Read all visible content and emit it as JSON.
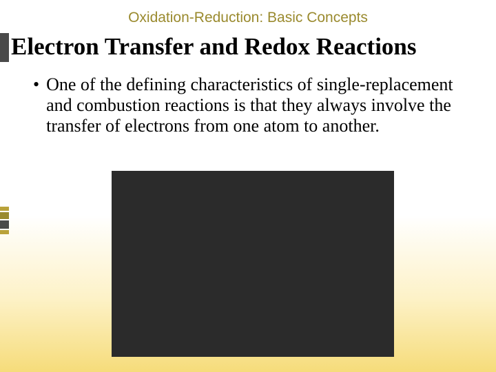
{
  "slide": {
    "topic": "Oxidation-Reduction: Basic Concepts",
    "title": "Electron Transfer and Redox Reactions",
    "bullet_text": "One of the defining characteristics of single-replacement and combustion reactions is that they always involve the transfer of electrons from one atom to another.",
    "topic_color": "#9a8a2e",
    "stripe_color": "#4a4a4a",
    "image_bg": "#2b2b2b",
    "gradient_top": "#ffffff",
    "gradient_mid": "#fdf2c8",
    "gradient_bottom": "#f6dc7a",
    "ticks": [
      {
        "h": 6,
        "c": "#b9a23a"
      },
      {
        "h": 10,
        "c": "#9a8a2e"
      },
      {
        "h": 12,
        "c": "#4a4a4a"
      },
      {
        "h": 6,
        "c": "#b9a23a"
      }
    ]
  }
}
